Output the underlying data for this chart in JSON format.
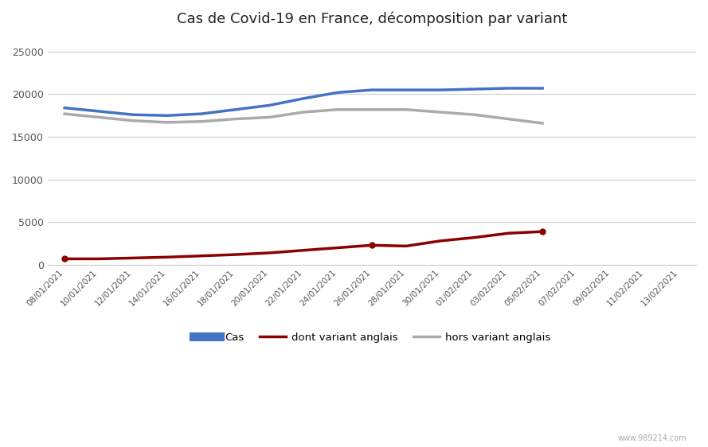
{
  "title": "Cas de Covid-19 en France, décomposition par variant",
  "dates": [
    "08/01/2021",
    "10/01/2021",
    "12/01/2021",
    "14/01/2021",
    "16/01/2021",
    "18/01/2021",
    "20/01/2021",
    "22/01/2021",
    "24/01/2021",
    "26/01/2021",
    "28/01/2021",
    "30/01/2021",
    "01/02/2021",
    "03/02/2021",
    "05/02/2021",
    "07/02/2021",
    "09/02/2021",
    "11/02/2021",
    "13/02/2021"
  ],
  "cas": [
    18400,
    18000,
    17600,
    17500,
    17700,
    18200,
    18700,
    19500,
    20200,
    20500,
    20500,
    20500,
    20600,
    20700,
    20700,
    null,
    null,
    null,
    null
  ],
  "variant_anglais": [
    700,
    700,
    800,
    900,
    1050,
    1200,
    1400,
    1700,
    2000,
    2300,
    2200,
    2800,
    3200,
    3700,
    3900,
    null,
    null,
    null,
    null
  ],
  "hors_variant": [
    17700,
    17300,
    16900,
    16700,
    16800,
    17100,
    17300,
    17900,
    18200,
    18200,
    18200,
    17900,
    17600,
    17100,
    16600,
    null,
    null,
    null,
    null
  ],
  "cas_color": "#4472C4",
  "variant_color": "#8B0000",
  "hors_color": "#AAAAAA",
  "ylim": [
    0,
    27000
  ],
  "yticks": [
    0,
    5000,
    10000,
    15000,
    20000,
    25000
  ],
  "legend_labels": [
    "Cas",
    "dont variant anglais",
    "hors variant anglais"
  ],
  "line_width": 2.5,
  "dot_indices": [
    0,
    9,
    14
  ],
  "watermark": "www.989214.com"
}
